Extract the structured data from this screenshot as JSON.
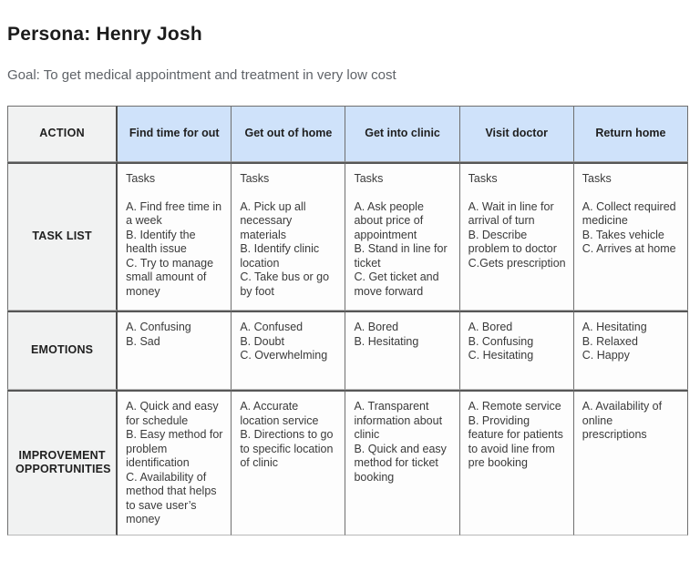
{
  "page": {
    "title": "Persona: Henry Josh",
    "goal": "Goal: To get medical appointment and treatment in very low cost"
  },
  "colors": {
    "stage_header_fill": "#cfe2fa",
    "label_fill": "#f1f2f2",
    "border_dark": "#565656",
    "goal_text": "#5f6368"
  },
  "table": {
    "corner_label": "ACTION",
    "stage_columns": [
      "Find time for out",
      "Get out of home",
      "Get into clinic",
      "Visit doctor",
      "Return home"
    ],
    "rows": [
      {
        "label": "TASK LIST",
        "cells": [
          {
            "heading": "Tasks",
            "items": [
              "A. Find free time in a week",
              "B. Identify the health issue",
              "C. Try to manage small amount of money"
            ]
          },
          {
            "heading": "Tasks",
            "items": [
              "A. Pick up all necessary materials",
              "B. Identify clinic location",
              "C. Take bus or go by foot"
            ]
          },
          {
            "heading": "Tasks",
            "items": [
              "A. Ask people about price of appointment",
              "B. Stand in line for ticket",
              "C. Get ticket and move forward"
            ]
          },
          {
            "heading": "Tasks",
            "items": [
              "A. Wait in line for arrival of turn",
              "B. Describe problem to doctor",
              "C.Gets prescription"
            ]
          },
          {
            "heading": "Tasks",
            "items": [
              "A. Collect required medicine",
              "B. Takes vehicle",
              "C. Arrives at home"
            ]
          }
        ]
      },
      {
        "label": "EMOTIONS",
        "cells": [
          {
            "items": [
              "A. Confusing",
              "B. Sad"
            ]
          },
          {
            "items": [
              "A. Confused",
              "B. Doubt",
              "C. Overwhelming"
            ]
          },
          {
            "items": [
              "A. Bored",
              "B. Hesitating"
            ]
          },
          {
            "items": [
              "A. Bored",
              "B. Confusing",
              "C. Hesitating"
            ]
          },
          {
            "items": [
              "A. Hesitating",
              "B. Relaxed",
              "C. Happy"
            ]
          }
        ]
      },
      {
        "label": "IMPROVEMENT OPPORTUNITIES",
        "cells": [
          {
            "items": [
              "A. Quick and easy for schedule",
              "B. Easy method for problem identification",
              "C. Availability of method that helps to save user’s money"
            ]
          },
          {
            "items": [
              "A. Accurate location service",
              "B. Directions to go to specific location of clinic"
            ]
          },
          {
            "items": [
              "A. Transparent information about clinic",
              "B. Quick and easy method for ticket booking"
            ]
          },
          {
            "items": [
              "A. Remote service",
              "B. Providing feature for patients to avoid line from pre booking"
            ]
          },
          {
            "items": [
              "A. Availability of online prescriptions"
            ]
          }
        ]
      }
    ]
  }
}
